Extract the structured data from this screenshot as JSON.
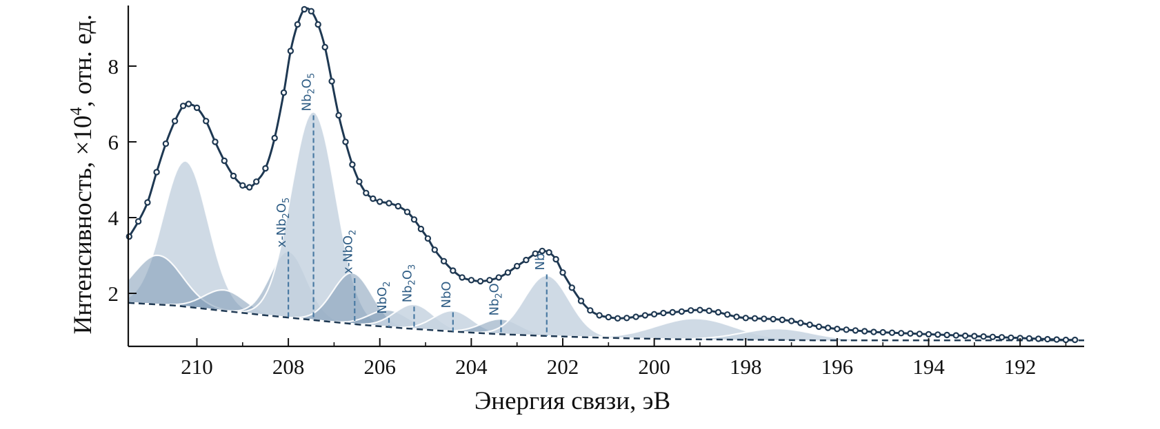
{
  "chart_data": {
    "type": "line",
    "xlabel": "Энергия связи, эВ",
    "ylabel": "Интенсивность, ×10",
    "ylabel_exp": "4",
    "ylabel_tail": ", отн. ед.",
    "xlim": [
      211.5,
      190.6
    ],
    "ylim": [
      0.6,
      9.6
    ],
    "x_reversed": true,
    "x_ticks": [
      210,
      208,
      206,
      204,
      202,
      200,
      198,
      196,
      194,
      192
    ],
    "x_minor_ticks": [
      209,
      207,
      205,
      203,
      201,
      199,
      197,
      195,
      193,
      191
    ],
    "y_ticks": [
      2,
      4,
      6,
      8
    ],
    "grid": false,
    "legend": "none",
    "colors": {
      "fit_line": "#1e3852",
      "points": "#1e3852",
      "peak_fill_light": "#c7d4e1",
      "peak_fill_dark": "#7f9bb6",
      "background_line": "#1e3852",
      "marker_line": "#4a7aa3",
      "label": "#2f5d85"
    },
    "experimental_points": [
      [
        211.48,
        3.5
      ],
      [
        211.28,
        3.9
      ],
      [
        211.08,
        4.4
      ],
      [
        210.88,
        5.2
      ],
      [
        210.68,
        5.95
      ],
      [
        210.48,
        6.55
      ],
      [
        210.3,
        6.95
      ],
      [
        210.18,
        7.0
      ],
      [
        210.0,
        6.9
      ],
      [
        209.8,
        6.55
      ],
      [
        209.6,
        6.0
      ],
      [
        209.4,
        5.5
      ],
      [
        209.2,
        5.1
      ],
      [
        209.0,
        4.85
      ],
      [
        208.85,
        4.8
      ],
      [
        208.7,
        4.95
      ],
      [
        208.5,
        5.3
      ],
      [
        208.3,
        6.1
      ],
      [
        208.1,
        7.3
      ],
      [
        207.95,
        8.4
      ],
      [
        207.8,
        9.1
      ],
      [
        207.65,
        9.5
      ],
      [
        207.5,
        9.45
      ],
      [
        207.35,
        9.1
      ],
      [
        207.2,
        8.5
      ],
      [
        207.05,
        7.6
      ],
      [
        206.9,
        6.7
      ],
      [
        206.75,
        6.0
      ],
      [
        206.6,
        5.4
      ],
      [
        206.45,
        4.95
      ],
      [
        206.3,
        4.65
      ],
      [
        206.15,
        4.5
      ],
      [
        206.0,
        4.42
      ],
      [
        205.8,
        4.38
      ],
      [
        205.6,
        4.3
      ],
      [
        205.4,
        4.15
      ],
      [
        205.25,
        3.95
      ],
      [
        205.1,
        3.7
      ],
      [
        204.95,
        3.45
      ],
      [
        204.8,
        3.15
      ],
      [
        204.6,
        2.85
      ],
      [
        204.4,
        2.6
      ],
      [
        204.2,
        2.42
      ],
      [
        204.0,
        2.35
      ],
      [
        203.8,
        2.32
      ],
      [
        203.6,
        2.35
      ],
      [
        203.4,
        2.42
      ],
      [
        203.2,
        2.55
      ],
      [
        203.0,
        2.72
      ],
      [
        202.8,
        2.88
      ],
      [
        202.6,
        3.05
      ],
      [
        202.45,
        3.12
      ],
      [
        202.3,
        3.08
      ],
      [
        202.15,
        2.9
      ],
      [
        202.0,
        2.55
      ],
      [
        201.8,
        2.15
      ],
      [
        201.6,
        1.8
      ],
      [
        201.4,
        1.55
      ],
      [
        201.2,
        1.42
      ],
      [
        201.0,
        1.37
      ],
      [
        200.8,
        1.34
      ],
      [
        200.6,
        1.35
      ],
      [
        200.4,
        1.38
      ],
      [
        200.2,
        1.42
      ],
      [
        200.0,
        1.45
      ],
      [
        199.8,
        1.48
      ],
      [
        199.6,
        1.5
      ],
      [
        199.4,
        1.52
      ],
      [
        199.2,
        1.55
      ],
      [
        199.0,
        1.56
      ],
      [
        198.8,
        1.54
      ],
      [
        198.6,
        1.5
      ],
      [
        198.4,
        1.44
      ],
      [
        198.2,
        1.38
      ],
      [
        198.0,
        1.35
      ],
      [
        197.8,
        1.34
      ],
      [
        197.6,
        1.33
      ],
      [
        197.4,
        1.32
      ],
      [
        197.2,
        1.3
      ],
      [
        197.0,
        1.27
      ],
      [
        196.8,
        1.22
      ],
      [
        196.6,
        1.17
      ],
      [
        196.4,
        1.12
      ],
      [
        196.2,
        1.09
      ],
      [
        196.0,
        1.06
      ],
      [
        195.8,
        1.04
      ],
      [
        195.6,
        1.02
      ],
      [
        195.4,
        1.0
      ],
      [
        195.2,
        0.98
      ],
      [
        195.0,
        0.97
      ],
      [
        194.8,
        0.96
      ],
      [
        194.6,
        0.95
      ],
      [
        194.4,
        0.94
      ],
      [
        194.2,
        0.93
      ],
      [
        194.0,
        0.92
      ],
      [
        193.8,
        0.91
      ],
      [
        193.6,
        0.9
      ],
      [
        193.4,
        0.89
      ],
      [
        193.2,
        0.88
      ],
      [
        193.0,
        0.87
      ],
      [
        192.8,
        0.86
      ],
      [
        192.6,
        0.85
      ],
      [
        192.4,
        0.84
      ],
      [
        192.2,
        0.83
      ],
      [
        192.0,
        0.82
      ],
      [
        191.8,
        0.81
      ],
      [
        191.6,
        0.8
      ],
      [
        191.4,
        0.79
      ],
      [
        191.2,
        0.78
      ],
      [
        191.0,
        0.77
      ],
      [
        190.8,
        0.77
      ]
    ],
    "background": [
      [
        211.5,
        1.75
      ],
      [
        210.5,
        1.68
      ],
      [
        209.5,
        1.55
      ],
      [
        208.5,
        1.42
      ],
      [
        207.5,
        1.3
      ],
      [
        206.5,
        1.18
      ],
      [
        205.5,
        1.08
      ],
      [
        204.5,
        1.0
      ],
      [
        203.5,
        0.93
      ],
      [
        202.5,
        0.88
      ],
      [
        201.5,
        0.84
      ],
      [
        200.5,
        0.81
      ],
      [
        199.5,
        0.79
      ],
      [
        198.5,
        0.78
      ],
      [
        197.5,
        0.77
      ],
      [
        196.5,
        0.76
      ],
      [
        195.5,
        0.76
      ],
      [
        194.5,
        0.76
      ],
      [
        193.5,
        0.76
      ],
      [
        192.5,
        0.76
      ],
      [
        191.5,
        0.76
      ],
      [
        190.6,
        0.76
      ]
    ],
    "components": [
      {
        "center": 210.25,
        "height": 3.85,
        "fwhm": 1.15,
        "shade": "light"
      },
      {
        "center": 210.85,
        "height": 1.3,
        "fwhm": 1.25,
        "shade": "dark"
      },
      {
        "center": 209.4,
        "height": 0.55,
        "fwhm": 1.05,
        "shade": "dark"
      },
      {
        "center": 208.0,
        "height": 1.75,
        "fwhm": 0.95,
        "shade": "dark"
      },
      {
        "center": 207.45,
        "height": 5.5,
        "fwhm": 1.15,
        "shade": "light"
      },
      {
        "center": 206.6,
        "height": 1.35,
        "fwhm": 1.0,
        "shade": "dark"
      },
      {
        "center": 205.8,
        "height": 0.45,
        "fwhm": 1.0,
        "shade": "dark"
      },
      {
        "center": 205.25,
        "height": 0.65,
        "fwhm": 1.0,
        "shade": "light"
      },
      {
        "center": 204.4,
        "height": 0.55,
        "fwhm": 1.0,
        "shade": "light"
      },
      {
        "center": 203.35,
        "height": 0.4,
        "fwhm": 1.0,
        "shade": "dark"
      },
      {
        "center": 202.35,
        "height": 1.6,
        "fwhm": 1.15,
        "shade": "light"
      },
      {
        "center": 199.1,
        "height": 0.55,
        "fwhm": 2.0,
        "shade": "light"
      },
      {
        "center": 197.3,
        "height": 0.3,
        "fwhm": 1.8,
        "shade": "light"
      }
    ],
    "peak_markers": [
      {
        "label_main": "x-Nb",
        "label_sub1": "2",
        "label_mid": "O",
        "label_sub2": "5",
        "x": 208.0,
        "y": 3.1
      },
      {
        "label_main": "Nb",
        "label_sub1": "2",
        "label_mid": "O",
        "label_sub2": "5",
        "x": 207.45,
        "y": 6.7
      },
      {
        "label_main": "x-NbO",
        "label_sub1": "2",
        "label_mid": "",
        "label_sub2": "",
        "x": 206.55,
        "y": 2.4
      },
      {
        "label_main": "NbO",
        "label_sub1": "2",
        "label_mid": "",
        "label_sub2": "",
        "x": 205.8,
        "y": 1.35
      },
      {
        "label_main": "Nb",
        "label_sub1": "2",
        "label_mid": "O",
        "label_sub2": "3",
        "x": 205.25,
        "y": 1.65
      },
      {
        "label_main": "NbO",
        "label_sub1": "",
        "label_mid": "",
        "label_sub2": "",
        "x": 204.4,
        "y": 1.5
      },
      {
        "label_main": "Nb",
        "label_sub1": "2",
        "label_mid": "O",
        "label_sub2": "",
        "x": 203.35,
        "y": 1.3
      },
      {
        "label_main": "Nb",
        "label_sub1": "",
        "label_mid": "",
        "label_sub2": "",
        "x": 202.35,
        "y": 2.5
      }
    ]
  }
}
